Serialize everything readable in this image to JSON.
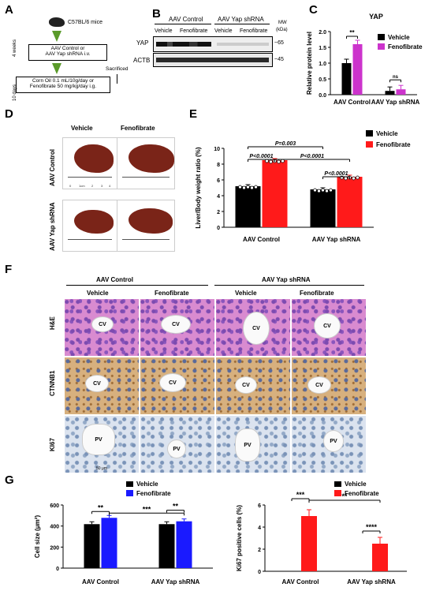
{
  "panels": {
    "A": "A",
    "B": "B",
    "C": "C",
    "D": "D",
    "E": "E",
    "F": "F",
    "G": "G"
  },
  "panelA": {
    "mice": "C57BL/6 mice",
    "weeks": "4 weeks",
    "days": "10 days",
    "box1_line1": "AAV Control or",
    "box1_line2": "AAV Yap shRNA i.v.",
    "box2_line1": "Corn Oil 0.1 mL/10g/day or",
    "box2_line2": "Fenofibrate 50 mg/kg/day i.g.",
    "sacrificed": "Sacrificed"
  },
  "panelB": {
    "group1": "AAV Control",
    "group2": "AAV Yap shRNA",
    "lanes": [
      "Vehicle",
      "Fenofibrate",
      "Vehicle",
      "Fenofibrate"
    ],
    "mw": "MW",
    "kda": "(kDa)",
    "row1": "YAP",
    "row2": "ACTB",
    "mw1": "~65",
    "mw2": "~45"
  },
  "panelD": {
    "col1": "Vehicle",
    "col2": "Fenofibrate",
    "row1": "AAV Control",
    "row2": "AAV Yap shRNA",
    "ruler_labels": [
      "0",
      "1cm",
      "2",
      "3",
      "4"
    ]
  },
  "panelF": {
    "group1": "AAV Control",
    "group2": "AAV Yap shRNA",
    "cols": [
      "Vehicle",
      "Fenofibrate",
      "Vehicle",
      "Fenofibrate"
    ],
    "rows": [
      "H&E",
      "CTNNB1",
      "KI67"
    ],
    "vessel_cv": "CV",
    "vessel_pv": "PV",
    "scale": "50 μm"
  },
  "chart_data": [
    {
      "panel": "C",
      "type": "bar",
      "title": "YAP",
      "ylabel": "Relative protein level",
      "categories": [
        "AAV Control",
        "AAV Yap shRNA"
      ],
      "series": [
        {
          "name": "Vehicle",
          "values": [
            1.0,
            0.12
          ],
          "color": "#000000"
        },
        {
          "name": "Fenofibrate",
          "values": [
            1.6,
            0.17
          ],
          "color": "#cc33cc"
        }
      ],
      "ylim": [
        0,
        2.0
      ],
      "yticks": [
        "0.0",
        "0.5",
        "1.0",
        "1.5",
        "2.0"
      ],
      "annotations": [
        "**",
        "ns"
      ]
    },
    {
      "panel": "E",
      "type": "bar",
      "ylabel": "Liver/Body weight ratio (%)",
      "categories": [
        "AAV Control",
        "AAV Yap shRNA"
      ],
      "series": [
        {
          "name": "Vehicle",
          "values": [
            5.2,
            4.8
          ],
          "color": "#000000"
        },
        {
          "name": "Fenofibrate",
          "values": [
            8.5,
            6.4
          ],
          "color": "#ff1a1a"
        }
      ],
      "ylim": [
        0,
        10
      ],
      "yticks": [
        "0",
        "2",
        "4",
        "6",
        "8",
        "10"
      ],
      "annotations": [
        "P=0.003",
        "P<0.0001",
        "P<0.0001",
        "P<0.0001"
      ]
    },
    {
      "panel": "G-left",
      "type": "bar",
      "ylabel": "Cell size (μm²)",
      "categories": [
        "AAV Control",
        "AAV Yap shRNA"
      ],
      "series": [
        {
          "name": "Vehicle",
          "values": [
            418,
            418
          ],
          "color": "#000000"
        },
        {
          "name": "Fenofibrate",
          "values": [
            478,
            445
          ],
          "color": "#1a1aff"
        }
      ],
      "ylim": [
        0,
        600
      ],
      "yticks": [
        "0",
        "200",
        "400",
        "600"
      ],
      "annotations": [
        "**",
        "***",
        "**"
      ]
    },
    {
      "panel": "G-right",
      "type": "bar",
      "ylabel": "Ki67 positive cells (%)",
      "categories": [
        "AAV Control",
        "AAV Yap shRNA"
      ],
      "series": [
        {
          "name": "Vehicle",
          "values": [
            0,
            0
          ],
          "color": "#000000"
        },
        {
          "name": "Fenofibrate",
          "values": [
            5.0,
            2.5
          ],
          "color": "#ff1a1a"
        }
      ],
      "ylim": [
        0,
        6
      ],
      "yticks": [
        "0",
        "2",
        "4",
        "6"
      ],
      "annotations": [
        "***",
        "**",
        "****"
      ]
    }
  ]
}
